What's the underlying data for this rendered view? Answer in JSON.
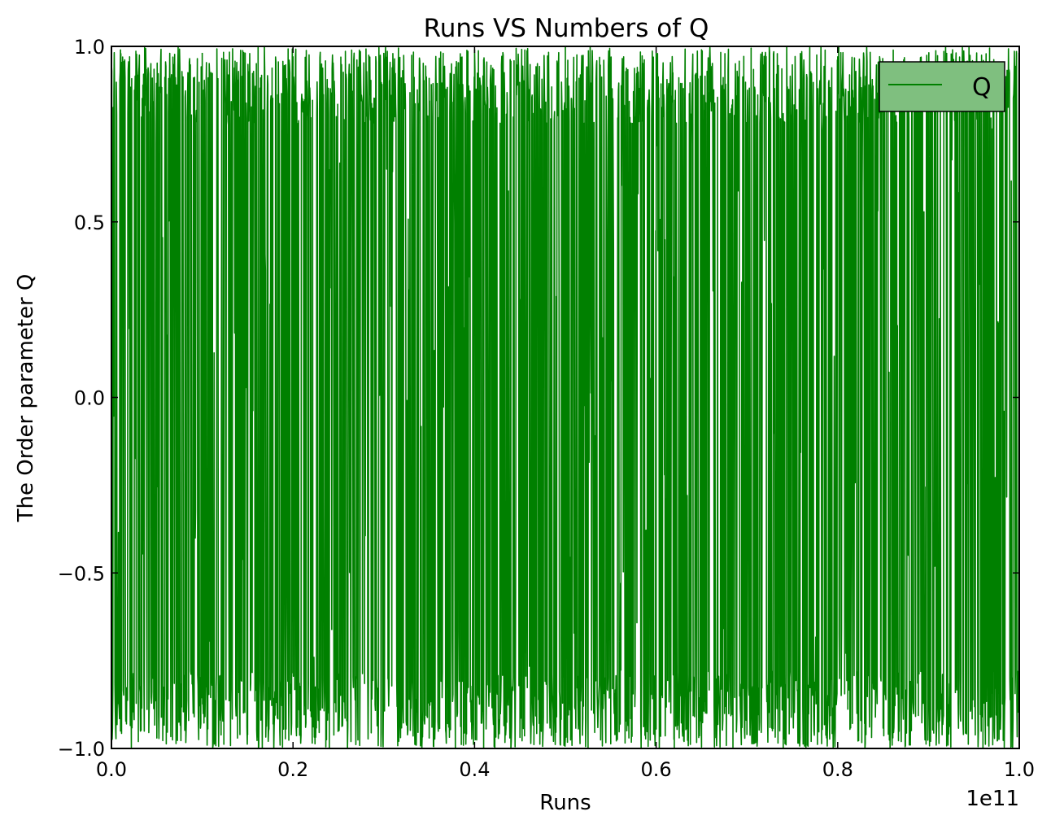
{
  "chart_data": {
    "type": "line",
    "title": "Runs VS Numbers of Q",
    "xlabel": "Runs",
    "ylabel": "The Order parameter Q",
    "x_offset_label": "1e11",
    "xlim": [
      0.0,
      1.0
    ],
    "ylim": [
      -1.0,
      1.0
    ],
    "x_scale_multiplier": 100000000000.0,
    "xticks": [
      0.0,
      0.2,
      0.4,
      0.6,
      0.8,
      1.0
    ],
    "xtick_labels": [
      "0.0",
      "0.2",
      "0.4",
      "0.6",
      "0.8",
      "1.0"
    ],
    "yticks": [
      -1.0,
      -0.5,
      0.0,
      0.5,
      1.0
    ],
    "ytick_labels": [
      "−1.0",
      "−0.5",
      "0.0",
      "0.5",
      "1.0"
    ],
    "grid": false,
    "legend_position": "top-right",
    "series": [
      {
        "name": "Q",
        "color": "#008000",
        "description_of_values": "dense oscillation between about -1.0 and 1.0 over the whole x range, concentrated near +0.9 and -0.9",
        "representative_points": [
          {
            "x": 0.0,
            "y": 0.95
          },
          {
            "x": 0.01,
            "y": -0.95
          },
          {
            "x": 0.02,
            "y": 0.97
          },
          {
            "x": 0.05,
            "y": -0.97
          },
          {
            "x": 0.1,
            "y": 0.98
          },
          {
            "x": 0.15,
            "y": -0.96
          },
          {
            "x": 0.2,
            "y": 0.97
          },
          {
            "x": 0.24,
            "y": -1.0
          },
          {
            "x": 0.3,
            "y": 0.98
          },
          {
            "x": 0.35,
            "y": -0.97
          },
          {
            "x": 0.4,
            "y": 0.99
          },
          {
            "x": 0.41,
            "y": -1.0
          },
          {
            "x": 0.44,
            "y": -1.0
          },
          {
            "x": 0.5,
            "y": 1.0
          },
          {
            "x": 0.55,
            "y": -0.98
          },
          {
            "x": 0.6,
            "y": 0.98
          },
          {
            "x": 0.62,
            "y": -1.0
          },
          {
            "x": 0.65,
            "y": 0.99
          },
          {
            "x": 0.7,
            "y": -0.96
          },
          {
            "x": 0.74,
            "y": -1.0
          },
          {
            "x": 0.8,
            "y": 0.97
          },
          {
            "x": 0.83,
            "y": -1.0
          },
          {
            "x": 0.88,
            "y": -0.99
          },
          {
            "x": 0.92,
            "y": 0.98
          },
          {
            "x": 0.96,
            "y": -1.0
          },
          {
            "x": 1.0,
            "y": 0.95
          }
        ]
      }
    ],
    "colors": {
      "line": "#008000",
      "legend_background": "#7fbf7f"
    }
  }
}
